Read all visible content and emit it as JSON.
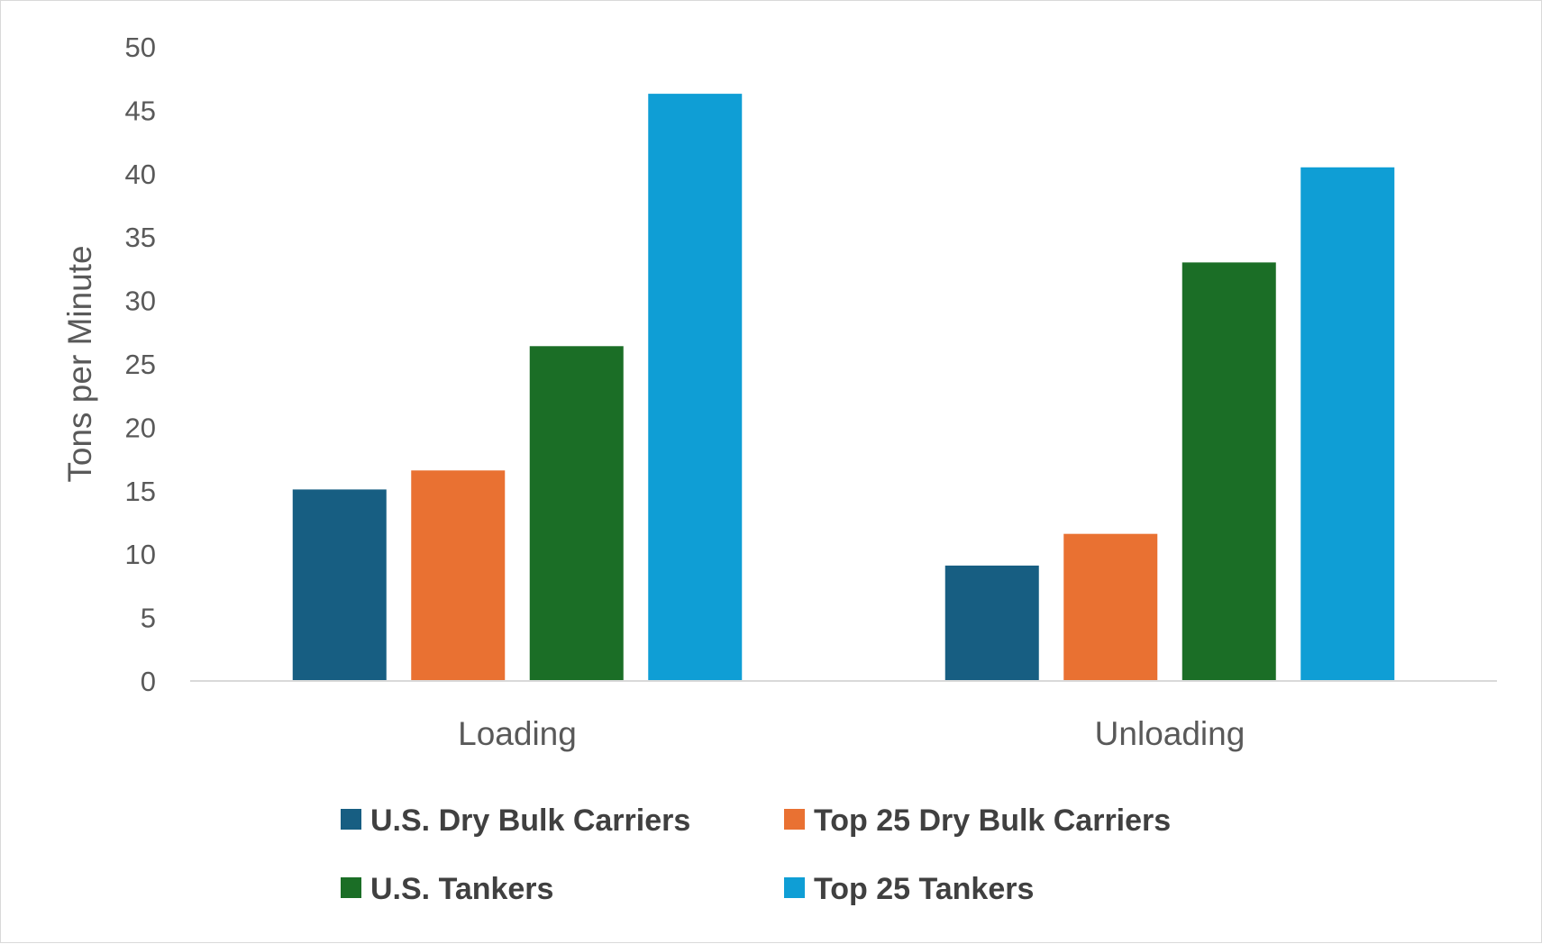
{
  "chart_data": {
    "type": "bar",
    "title": "",
    "xlabel": "",
    "ylabel": "Tons per Minute",
    "categories": [
      "Loading",
      "Unloading"
    ],
    "series": [
      {
        "name": "U.S. Dry Bulk Carriers",
        "color": "#175e82",
        "values": [
          15.1,
          9.1
        ]
      },
      {
        "name": "Top 25 Dry Bulk Carriers",
        "color": "#e97132",
        "values": [
          16.6,
          11.6
        ]
      },
      {
        "name": "U.S. Tankers",
        "color": "#1b6e26",
        "values": [
          26.4,
          33.0
        ]
      },
      {
        "name": "Top 25 Tankers",
        "color": "#0f9ed5",
        "values": [
          46.3,
          40.5
        ]
      }
    ],
    "ylim": [
      0,
      50
    ],
    "yticks": [
      0,
      5,
      10,
      15,
      20,
      25,
      30,
      35,
      40,
      45,
      50
    ],
    "grid": false,
    "legend": "bottom"
  }
}
